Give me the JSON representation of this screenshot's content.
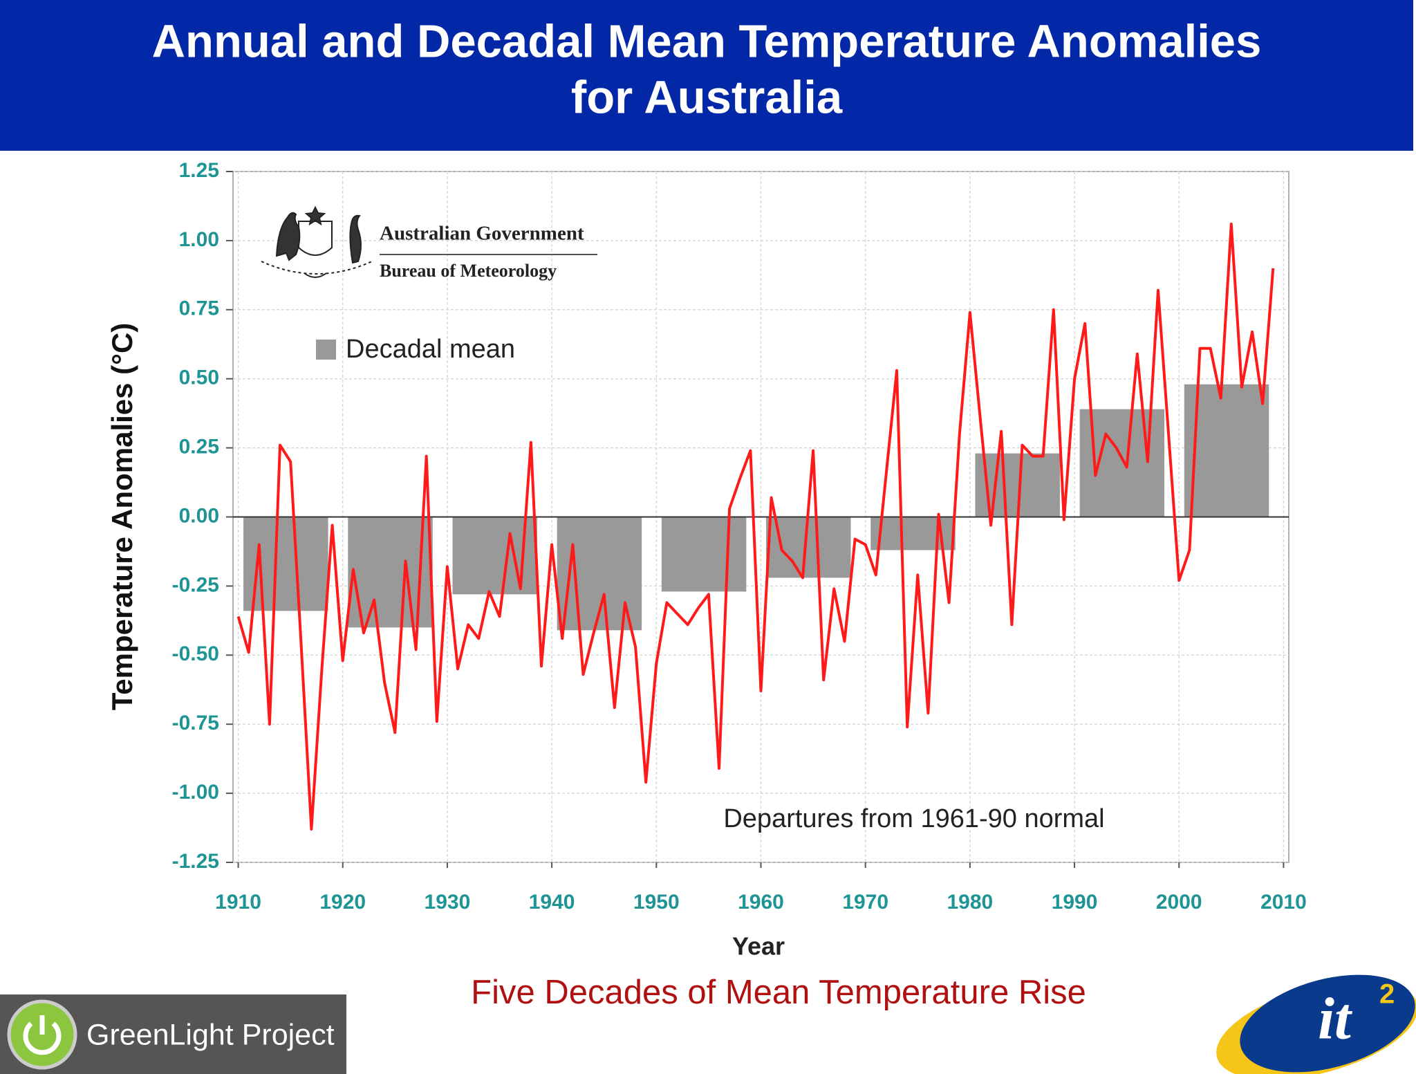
{
  "chart_data": {
    "type": "combo",
    "title": "Annual and Decadal Mean Temperature Anomalies",
    "title_line2": "for Australia",
    "logo_line1": "Australian Government",
    "logo_line2": "Bureau of Meteorology",
    "annotation": "Departures from 1961-90 normal",
    "xlabel": "Year",
    "ylabel": "Temperature Anomalies (°C)",
    "caption": "Five Decades of Mean Temperature Rise",
    "footer_left": "GreenLight Project",
    "footer_logo": "it",
    "footer_logo_sup": "2",
    "xlim": [
      1909.5,
      2010.5
    ],
    "xticks": [
      1910,
      1920,
      1930,
      1940,
      1950,
      1960,
      1970,
      1980,
      1990,
      2000,
      2010
    ],
    "ylim": [
      -1.25,
      1.25
    ],
    "yticks": [
      {
        "value": -1.25,
        "label": "-1.25"
      },
      {
        "value": -1,
        "label": "-1.00"
      },
      -0.75,
      {
        "value": -0.5,
        "label": "-0.50"
      },
      -0.25,
      {
        "value": 0,
        "label": "0.00"
      },
      0.25,
      {
        "value": 0.5,
        "label": "0.50"
      },
      0.75,
      {
        "value": 1,
        "label": "1.00"
      },
      1.25
    ],
    "grid": true,
    "series": [
      {
        "name": "Decadal mean",
        "type": "bar",
        "color": "#999999",
        "x": [
          1910,
          1920,
          1930,
          1940,
          1950,
          1960,
          1970,
          1980,
          1990,
          2000
        ],
        "values": [
          -0.34,
          -0.4,
          -0.28,
          -0.41,
          -0.27,
          -0.22,
          -0.12,
          0.23,
          0.39,
          0.48
        ]
      },
      {
        "type": "line",
        "color": "#ff1a1a",
        "x": [
          1910,
          1911,
          1912,
          1913,
          1914,
          1915,
          1916,
          1917,
          1918,
          1919,
          1920,
          1921,
          1922,
          1923,
          1924,
          1925,
          1926,
          1927,
          1928,
          1929,
          1930,
          1931,
          1932,
          1933,
          1934,
          1935,
          1936,
          1937,
          1938,
          1939,
          1940,
          1941,
          1942,
          1943,
          1944,
          1945,
          1946,
          1947,
          1948,
          1949,
          1950,
          1951,
          1952,
          1953,
          1954,
          1955,
          1956,
          1957,
          1958,
          1959,
          1960,
          1961,
          1962,
          1963,
          1964,
          1965,
          1966,
          1967,
          1968,
          1969,
          1970,
          1971,
          1972,
          1973,
          1974,
          1975,
          1976,
          1977,
          1978,
          1979,
          1980,
          1981,
          1982,
          1983,
          1984,
          1985,
          1986,
          1987,
          1988,
          1989,
          1990,
          1991,
          1992,
          1993,
          1994,
          1995,
          1996,
          1997,
          1998,
          1999,
          2000,
          2001,
          2002,
          2003,
          2004,
          2005,
          2006,
          2007,
          2008,
          2009
        ],
        "values": [
          -0.36,
          -0.49,
          -0.1,
          -0.75,
          0.26,
          0.2,
          -0.45,
          -1.13,
          -0.55,
          -0.03,
          -0.52,
          -0.19,
          -0.42,
          -0.3,
          -0.6,
          -0.78,
          -0.16,
          -0.48,
          0.22,
          -0.74,
          -0.18,
          -0.55,
          -0.39,
          -0.44,
          -0.27,
          -0.36,
          -0.06,
          -0.26,
          0.27,
          -0.54,
          -0.1,
          -0.44,
          -0.1,
          -0.57,
          -0.42,
          -0.28,
          -0.69,
          -0.31,
          -0.47,
          -0.96,
          -0.53,
          -0.31,
          -0.35,
          -0.39,
          -0.33,
          -0.28,
          -0.91,
          0.03,
          0.14,
          0.24,
          -0.63,
          0.07,
          -0.12,
          -0.16,
          -0.22,
          0.24,
          -0.59,
          -0.26,
          -0.45,
          -0.08,
          -0.1,
          -0.21,
          0.16,
          0.53,
          -0.76,
          -0.21,
          -0.71,
          0.01,
          -0.31,
          0.3,
          0.74,
          0.35,
          -0.03,
          0.31,
          -0.39,
          0.26,
          0.22,
          0.22,
          0.75,
          -0.01,
          0.5,
          0.7,
          0.15,
          0.3,
          0.25,
          0.18,
          0.59,
          0.2,
          0.82,
          0.3,
          -0.23,
          -0.12,
          0.61,
          0.61,
          0.43,
          1.06,
          0.47,
          0.67,
          0.41,
          0.9
        ]
      }
    ]
  }
}
